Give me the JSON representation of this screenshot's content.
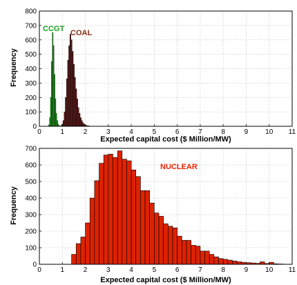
{
  "chart_data": [
    {
      "type": "bar",
      "xlabel": "Expected capital cost ($ Million/MW)",
      "ylabel": "Frequency",
      "xlim": [
        0,
        11
      ],
      "ylim": [
        0,
        800
      ],
      "xticks": [
        0,
        1,
        2,
        3,
        4,
        5,
        6,
        7,
        8,
        9,
        10,
        11
      ],
      "yticks": [
        0,
        100,
        200,
        300,
        400,
        500,
        600,
        700,
        800
      ],
      "grid": "dotted",
      "series": [
        {
          "name": "CCGT",
          "color": "#1a9e1a",
          "label_color": "#1a9e1a",
          "bin_width": 0.04,
          "x": [
            0.42,
            0.46,
            0.5,
            0.54,
            0.58,
            0.62,
            0.66,
            0.7,
            0.74,
            0.78,
            0.82,
            0.86
          ],
          "values": [
            10,
            60,
            200,
            450,
            650,
            560,
            360,
            190,
            90,
            40,
            15,
            5
          ]
        },
        {
          "name": "COAL",
          "color": "#5a1a1a",
          "label_color": "#8b2a14",
          "bin_width": 0.05,
          "x": [
            0.95,
            1.0,
            1.05,
            1.1,
            1.15,
            1.2,
            1.25,
            1.3,
            1.35,
            1.4,
            1.45,
            1.5,
            1.55,
            1.6,
            1.65,
            1.7,
            1.75,
            1.8,
            1.85,
            1.9,
            1.95,
            2.0,
            2.05,
            2.1,
            2.15,
            2.2
          ],
          "values": [
            5,
            15,
            40,
            100,
            200,
            330,
            460,
            560,
            640,
            600,
            520,
            430,
            340,
            260,
            190,
            130,
            90,
            60,
            40,
            25,
            15,
            10,
            6,
            4,
            3,
            2
          ]
        }
      ]
    },
    {
      "type": "bar",
      "xlabel": "Expected capital cost ($ Million/MW)",
      "ylabel": "Frequency",
      "xlim": [
        0,
        11
      ],
      "ylim": [
        0,
        700
      ],
      "xticks": [
        0,
        1,
        2,
        3,
        4,
        5,
        6,
        7,
        8,
        9,
        10,
        11
      ],
      "yticks": [
        0,
        100,
        200,
        300,
        400,
        500,
        600,
        700
      ],
      "grid": "dotted",
      "series": [
        {
          "name": "NUCLEAR",
          "color": "#dd2200",
          "label_color": "#ee2200",
          "bin_width": 0.2,
          "x": [
            1.5,
            1.7,
            1.9,
            2.1,
            2.3,
            2.5,
            2.7,
            2.9,
            3.1,
            3.3,
            3.5,
            3.7,
            3.9,
            4.1,
            4.3,
            4.5,
            4.7,
            4.9,
            5.1,
            5.3,
            5.5,
            5.7,
            5.9,
            6.1,
            6.3,
            6.5,
            6.7,
            6.9,
            7.1,
            7.3,
            7.5,
            7.7,
            7.9,
            8.1,
            8.3,
            8.5,
            8.7,
            8.9,
            9.1,
            9.3,
            9.5,
            9.7,
            9.9,
            10.1,
            10.3,
            10.5
          ],
          "values": [
            60,
            125,
            165,
            250,
            400,
            505,
            610,
            660,
            665,
            645,
            685,
            635,
            625,
            570,
            530,
            445,
            445,
            370,
            310,
            290,
            245,
            230,
            220,
            170,
            145,
            145,
            115,
            110,
            80,
            80,
            60,
            45,
            35,
            30,
            25,
            20,
            15,
            12,
            10,
            8,
            6,
            15,
            5,
            12,
            3,
            2
          ]
        }
      ]
    }
  ]
}
